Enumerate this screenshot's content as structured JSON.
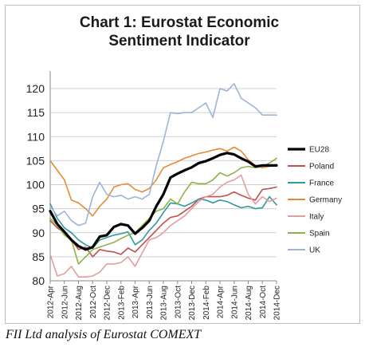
{
  "chart_data": {
    "type": "line",
    "title": "Chart 1: Eurostat Economic",
    "title_line2": "Sentiment Indicator",
    "ylim": [
      80,
      122
    ],
    "yticks": [
      80,
      85,
      90,
      95,
      100,
      105,
      110,
      115,
      120
    ],
    "x": [
      "2012-Apr",
      "2012-May",
      "2012-Jun",
      "2012-Jul",
      "2012-Aug",
      "2012-Sep",
      "2012-Oct",
      "2012-Nov",
      "2012-Dec",
      "2013-Jan",
      "2013-Feb",
      "2013-Mar",
      "2013-Apr",
      "2013-May",
      "2013-Jun",
      "2013-Jul",
      "2013-Aug",
      "2013-Sep",
      "2013-Oct",
      "2013-Nov",
      "2013-Dec",
      "2014-Jan",
      "2014-Feb",
      "2014-Mar",
      "2014-Apr",
      "2014-May",
      "2014-Jun",
      "2014-Jul",
      "2014-Aug",
      "2014-Sep",
      "2014-Oct",
      "2014-Nov",
      "2014-Dec"
    ],
    "xtick_labels": [
      "2012-Apr",
      "2012-Jun",
      "2012-Aug",
      "2012-Oct",
      "2012-Dec",
      "2013-Feb",
      "2013-Apr",
      "2013-Jun",
      "2013-Aug",
      "2013-Oct",
      "2013-Dec",
      "2014-Feb",
      "2014-Apr",
      "2014-Jun",
      "2014-Aug",
      "2014-Oct",
      "2014-Dec"
    ],
    "grid": true,
    "legend_position": "right",
    "series": [
      {
        "name": "EU28",
        "color": "#000000",
        "width": 3.2,
        "values": [
          94.5,
          91.8,
          90.2,
          88.5,
          87.2,
          86.5,
          87.0,
          89.2,
          89.5,
          91.2,
          91.8,
          91.5,
          89.8,
          91.0,
          92.5,
          95.5,
          98.0,
          101.5,
          102.3,
          103.0,
          103.6,
          104.5,
          104.9,
          105.5,
          106.2,
          106.6,
          106.3,
          105.5,
          104.8,
          103.8,
          104.0,
          104.0,
          104.0
        ]
      },
      {
        "name": "Poland",
        "color": "#c0504d",
        "width": 1.6,
        "values": [
          92.5,
          91.0,
          90.0,
          88.5,
          86.5,
          87.0,
          85.0,
          86.5,
          86.2,
          86.0,
          85.5,
          86.8,
          86.0,
          87.5,
          89.0,
          90.5,
          92.0,
          93.2,
          93.5,
          94.5,
          95.5,
          97.0,
          97.5,
          97.5,
          97.5,
          97.8,
          98.5,
          97.8,
          97.2,
          96.8,
          99.0,
          99.2,
          99.5
        ]
      },
      {
        "name": "France",
        "color": "#31999a",
        "width": 1.6,
        "values": [
          96.0,
          93.0,
          91.0,
          90.0,
          88.5,
          87.5,
          86.8,
          88.5,
          89.0,
          89.5,
          89.8,
          90.2,
          87.5,
          88.5,
          90.5,
          92.0,
          94.2,
          96.2,
          96.0,
          95.5,
          96.2,
          97.0,
          96.8,
          96.2,
          96.8,
          96.5,
          95.8,
          95.2,
          95.5,
          95.0,
          95.2,
          97.5,
          95.8
        ]
      },
      {
        "name": "Germany",
        "color": "#e58a35",
        "width": 1.6,
        "values": [
          105.0,
          103.0,
          101.0,
          96.8,
          96.2,
          95.0,
          93.5,
          95.5,
          97.0,
          99.5,
          100.0,
          100.2,
          99.0,
          98.5,
          99.2,
          101.0,
          103.5,
          104.2,
          104.8,
          105.5,
          106.0,
          106.5,
          106.8,
          107.2,
          107.5,
          107.0,
          107.8,
          107.0,
          105.2,
          104.0,
          103.5,
          103.8,
          104.2
        ]
      },
      {
        "name": "Italy",
        "color": "#e59ba0",
        "width": 1.6,
        "values": [
          85.5,
          81.0,
          81.5,
          83.0,
          80.8,
          80.8,
          81.0,
          81.8,
          83.5,
          83.5,
          83.8,
          85.0,
          83.0,
          85.8,
          88.5,
          89.0,
          90.0,
          91.5,
          92.5,
          93.5,
          95.0,
          96.5,
          97.5,
          98.0,
          99.5,
          100.5,
          101.0,
          102.0,
          98.0,
          96.0,
          97.5,
          96.5,
          97.2
        ]
      },
      {
        "name": "Spain",
        "color": "#8db34a",
        "width": 1.6,
        "values": [
          93.0,
          91.5,
          89.5,
          88.5,
          83.5,
          85.0,
          86.5,
          87.0,
          87.5,
          88.0,
          88.8,
          89.5,
          90.0,
          91.5,
          93.0,
          94.5,
          95.0,
          97.0,
          96.0,
          98.5,
          100.5,
          100.2,
          100.2,
          101.0,
          102.5,
          101.8,
          102.5,
          103.5,
          103.8,
          103.5,
          103.8,
          104.5,
          105.5
        ]
      },
      {
        "name": "UK",
        "color": "#9bb4d8",
        "width": 1.6,
        "values": [
          95.5,
          93.5,
          94.5,
          92.5,
          91.5,
          92.0,
          97.5,
          100.5,
          98.0,
          97.5,
          97.8,
          97.0,
          97.5,
          97.0,
          98.0,
          104.0,
          109.0,
          115.0,
          114.8,
          115.0,
          115.0,
          116.0,
          117.0,
          114.0,
          120.0,
          119.5,
          121.0,
          118.0,
          117.0,
          116.0,
          114.5,
          114.5,
          114.5
        ]
      }
    ],
    "caption": "FII Ltd analysis of Eurostat COMEXT"
  }
}
